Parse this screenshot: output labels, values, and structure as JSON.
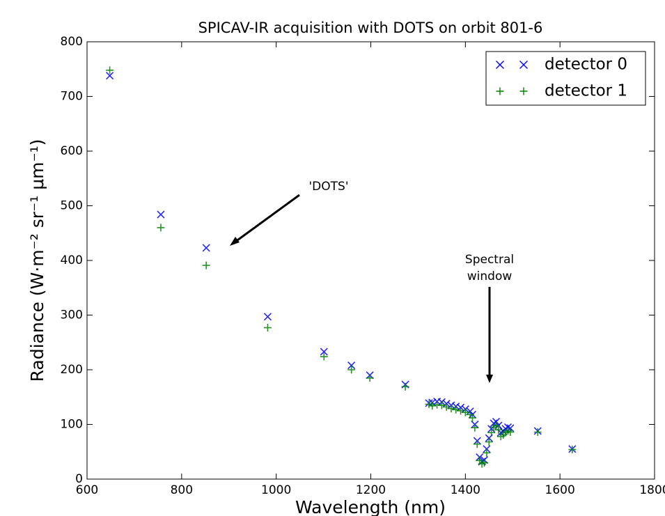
{
  "chart_data": {
    "type": "scatter",
    "title": "SPICAV-IR acquisition with DOTS on orbit 801-6",
    "x_label": "Wavelength (nm)",
    "y_label": "Radiance (W·m⁻² sr⁻¹ μm⁻¹)",
    "annotations": [
      "'DOTS'",
      "Spectral",
      "window"
    ],
    "xlim": [
      600,
      1800
    ],
    "xticks": [
      600,
      800,
      1000,
      1200,
      1400,
      1600,
      1800
    ],
    "ylim": [
      0,
      800
    ],
    "yticks": [
      0,
      100,
      200,
      300,
      400,
      500,
      600,
      700,
      800
    ],
    "grid": false,
    "legend": "upper right",
    "series": [
      {
        "name": "detector 0",
        "color": "#0000ff",
        "marker": "x",
        "x": [
          648,
          756,
          852,
          982,
          1101,
          1159,
          1198,
          1273,
          1323,
          1330,
          1340,
          1350,
          1360,
          1370,
          1380,
          1390,
          1400,
          1410,
          1415,
          1420,
          1425,
          1430,
          1435,
          1440,
          1445,
          1450,
          1455,
          1460,
          1465,
          1470,
          1475,
          1480,
          1485,
          1490,
          1495,
          1553,
          1626
        ],
        "values": [
          738,
          484,
          423,
          297,
          233,
          208,
          190,
          173,
          139,
          140,
          142,
          141,
          138,
          135,
          133,
          131,
          128,
          124,
          118,
          100,
          70,
          40,
          32,
          35,
          55,
          75,
          92,
          102,
          105,
          98,
          85,
          88,
          92,
          95,
          93,
          88,
          55
        ]
      },
      {
        "name": "detector 1",
        "color": "#008000",
        "marker": "+",
        "x": [
          648,
          756,
          852,
          982,
          1101,
          1159,
          1198,
          1273,
          1323,
          1330,
          1340,
          1350,
          1360,
          1370,
          1380,
          1390,
          1400,
          1410,
          1415,
          1420,
          1425,
          1430,
          1435,
          1440,
          1445,
          1450,
          1455,
          1460,
          1465,
          1470,
          1475,
          1480,
          1485,
          1490,
          1495,
          1553,
          1626
        ],
        "values": [
          748,
          460,
          391,
          277,
          224,
          200,
          185,
          169,
          137,
          134,
          136,
          135,
          132,
          129,
          127,
          125,
          122,
          118,
          112,
          94,
          64,
          34,
          28,
          30,
          48,
          68,
          85,
          95,
          98,
          90,
          78,
          81,
          85,
          88,
          86,
          86,
          54
        ]
      }
    ]
  }
}
